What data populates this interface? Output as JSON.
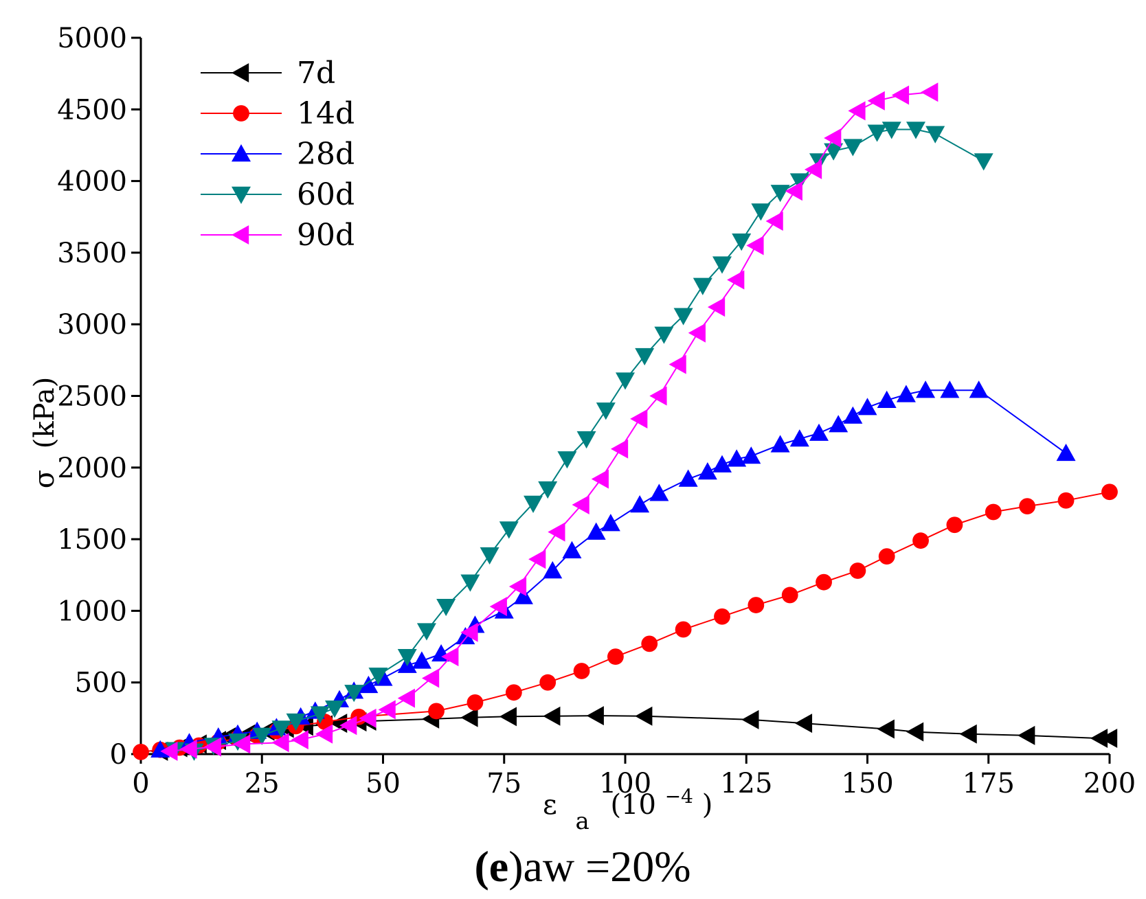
{
  "chart_data": {
    "type": "line",
    "xlim": [
      0,
      200
    ],
    "ylim": [
      0,
      5000
    ],
    "x_ticks": [
      "0",
      "25",
      "50",
      "75",
      "100",
      "125",
      "150",
      "175",
      "200"
    ],
    "y_ticks": [
      "0",
      "500",
      "1000",
      "1500",
      "2000",
      "2500",
      "3000",
      "3500",
      "4000",
      "4500",
      "5000"
    ],
    "xlabel": {
      "symbol": "ε",
      "sub": "a",
      "unit": "(10",
      "sup": "−4",
      "close": ")"
    },
    "ylabel": {
      "symbol": "σ",
      "unit": "(kPa)"
    },
    "caption": {
      "bold": "(e",
      "rest": ")aw =20%"
    },
    "legend_position": "top-left",
    "grid": false,
    "series": [
      {
        "name": "7d",
        "color": "#000000",
        "marker": "triangle-left",
        "points": [
          [
            4,
            20
          ],
          [
            8,
            45
          ],
          [
            12,
            70
          ],
          [
            16,
            95
          ],
          [
            18,
            120
          ],
          [
            22,
            140
          ],
          [
            26,
            160
          ],
          [
            30,
            180
          ],
          [
            34,
            195
          ],
          [
            38,
            205
          ],
          [
            41,
            215
          ],
          [
            45,
            225
          ],
          [
            47,
            230
          ],
          [
            60,
            245
          ],
          [
            68,
            255
          ],
          [
            76,
            262
          ],
          [
            85,
            265
          ],
          [
            94,
            268
          ],
          [
            104,
            265
          ],
          [
            126,
            240
          ],
          [
            137,
            215
          ],
          [
            154,
            175
          ],
          [
            160,
            155
          ],
          [
            171,
            140
          ],
          [
            183,
            130
          ],
          [
            198,
            110
          ],
          [
            200,
            110
          ]
        ]
      },
      {
        "name": "14d",
        "color": "#ff0000",
        "marker": "circle",
        "points": [
          [
            0,
            15
          ],
          [
            4,
            30
          ],
          [
            8,
            45
          ],
          [
            12,
            60
          ],
          [
            16,
            85
          ],
          [
            20,
            110
          ],
          [
            24,
            130
          ],
          [
            28,
            160
          ],
          [
            32,
            195
          ],
          [
            38,
            225
          ],
          [
            45,
            260
          ],
          [
            61,
            300
          ],
          [
            69,
            360
          ],
          [
            77,
            430
          ],
          [
            84,
            500
          ],
          [
            91,
            580
          ],
          [
            98,
            680
          ],
          [
            105,
            770
          ],
          [
            112,
            870
          ],
          [
            120,
            960
          ],
          [
            127,
            1040
          ],
          [
            134,
            1110
          ],
          [
            141,
            1200
          ],
          [
            148,
            1280
          ],
          [
            154,
            1380
          ],
          [
            161,
            1490
          ],
          [
            168,
            1600
          ],
          [
            176,
            1690
          ],
          [
            183,
            1730
          ],
          [
            191,
            1770
          ],
          [
            200,
            1830
          ]
        ]
      },
      {
        "name": "28d",
        "color": "#0000ff",
        "marker": "triangle-up",
        "points": [
          [
            4,
            30
          ],
          [
            10,
            80
          ],
          [
            16,
            120
          ],
          [
            20,
            140
          ],
          [
            24,
            160
          ],
          [
            28,
            185
          ],
          [
            33,
            260
          ],
          [
            36,
            300
          ],
          [
            41,
            380
          ],
          [
            44,
            440
          ],
          [
            47,
            480
          ],
          [
            50,
            530
          ],
          [
            55,
            620
          ],
          [
            58,
            650
          ],
          [
            62,
            700
          ],
          [
            67,
            820
          ],
          [
            69,
            900
          ],
          [
            75,
            1000
          ],
          [
            79,
            1100
          ],
          [
            85,
            1280
          ],
          [
            89,
            1420
          ],
          [
            94,
            1550
          ],
          [
            97,
            1610
          ],
          [
            103,
            1740
          ],
          [
            107,
            1820
          ],
          [
            113,
            1920
          ],
          [
            117,
            1970
          ],
          [
            120,
            2020
          ],
          [
            123,
            2060
          ],
          [
            126,
            2080
          ],
          [
            132,
            2160
          ],
          [
            136,
            2200
          ],
          [
            140,
            2240
          ],
          [
            144,
            2300
          ],
          [
            147,
            2360
          ],
          [
            150,
            2420
          ],
          [
            154,
            2470
          ],
          [
            158,
            2510
          ],
          [
            162,
            2540
          ],
          [
            167,
            2540
          ],
          [
            173,
            2540
          ],
          [
            191,
            2100
          ]
        ]
      },
      {
        "name": "60d",
        "color": "#008080",
        "marker": "triangle-down",
        "points": [
          [
            7,
            30
          ],
          [
            11,
            20
          ],
          [
            15,
            60
          ],
          [
            20,
            90
          ],
          [
            25,
            130
          ],
          [
            29,
            180
          ],
          [
            32,
            230
          ],
          [
            37,
            280
          ],
          [
            40,
            320
          ],
          [
            44,
            430
          ],
          [
            49,
            550
          ],
          [
            55,
            680
          ],
          [
            59,
            860
          ],
          [
            63,
            1030
          ],
          [
            68,
            1200
          ],
          [
            72,
            1390
          ],
          [
            76,
            1570
          ],
          [
            81,
            1750
          ],
          [
            84,
            1850
          ],
          [
            88,
            2060
          ],
          [
            92,
            2200
          ],
          [
            96,
            2400
          ],
          [
            100,
            2610
          ],
          [
            104,
            2780
          ],
          [
            108,
            2930
          ],
          [
            112,
            3060
          ],
          [
            116,
            3270
          ],
          [
            120,
            3420
          ],
          [
            124,
            3580
          ],
          [
            128,
            3790
          ],
          [
            132,
            3920
          ],
          [
            136,
            4000
          ],
          [
            140,
            4140
          ],
          [
            143,
            4210
          ],
          [
            147,
            4240
          ],
          [
            152,
            4340
          ],
          [
            155,
            4360
          ],
          [
            160,
            4360
          ],
          [
            164,
            4330
          ],
          [
            174,
            4140
          ]
        ]
      },
      {
        "name": "90d",
        "color": "#ff00ff",
        "marker": "triangle-left",
        "points": [
          [
            6,
            20
          ],
          [
            10,
            35
          ],
          [
            15,
            50
          ],
          [
            21,
            70
          ],
          [
            29,
            80
          ],
          [
            33,
            100
          ],
          [
            38,
            140
          ],
          [
            43,
            200
          ],
          [
            47,
            250
          ],
          [
            51,
            310
          ],
          [
            55,
            390
          ],
          [
            60,
            530
          ],
          [
            64,
            680
          ],
          [
            68,
            850
          ],
          [
            74,
            1030
          ],
          [
            78,
            1170
          ],
          [
            82,
            1360
          ],
          [
            86,
            1550
          ],
          [
            91,
            1740
          ],
          [
            95,
            1920
          ],
          [
            99,
            2130
          ],
          [
            103,
            2340
          ],
          [
            107,
            2500
          ],
          [
            111,
            2720
          ],
          [
            115,
            2940
          ],
          [
            119,
            3120
          ],
          [
            123,
            3310
          ],
          [
            127,
            3550
          ],
          [
            131,
            3720
          ],
          [
            135,
            3930
          ],
          [
            139,
            4080
          ],
          [
            143,
            4300
          ],
          [
            148,
            4490
          ],
          [
            152,
            4560
          ],
          [
            157,
            4600
          ],
          [
            163,
            4620
          ]
        ]
      }
    ]
  }
}
